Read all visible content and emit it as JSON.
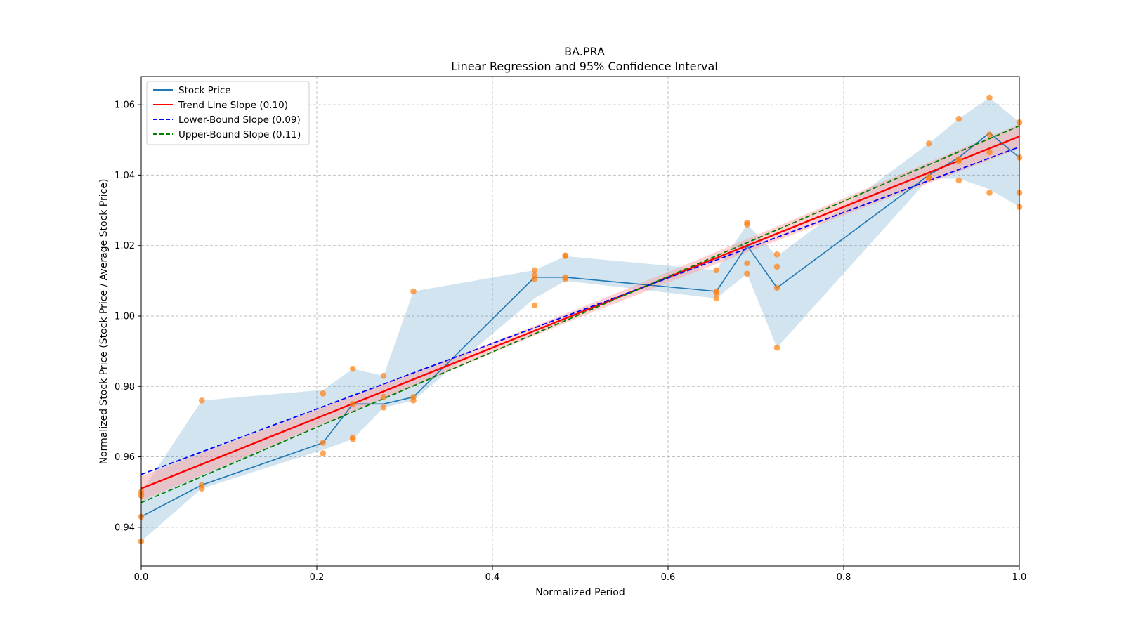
{
  "chart_data": {
    "type": "line",
    "title": "BA.PRA",
    "subtitle": "Linear Regression and 95% Confidence Interval",
    "xlabel": "Normalized Period",
    "ylabel": "Normalized Stock Price (Stock Price / Average Stock Price)",
    "xlim": [
      0.0,
      1.0
    ],
    "ylim": [
      0.929,
      1.068
    ],
    "xticks": [
      0.0,
      0.2,
      0.4,
      0.6,
      0.8,
      1.0
    ],
    "xtick_labels": [
      "0.0",
      "0.2",
      "0.4",
      "0.6",
      "0.8",
      "1.0"
    ],
    "yticks": [
      0.94,
      0.96,
      0.98,
      1.0,
      1.02,
      1.04,
      1.06
    ],
    "ytick_labels": [
      "0.94",
      "0.96",
      "0.98",
      "1.00",
      "1.02",
      "1.04",
      "1.06"
    ],
    "grid": true,
    "legend_position": "top-left",
    "colors": {
      "stock": "#1f77b4",
      "band": "#1f77b4",
      "points": "#ff7f0e",
      "trend": "#ff0000",
      "trend_ci": "#ff9999",
      "lower": "#0000ff",
      "upper": "#008000"
    },
    "series": [
      {
        "name": "Stock Price",
        "style": "solid",
        "x": [
          0.0,
          0.069,
          0.207,
          0.241,
          0.276,
          0.31,
          0.448,
          0.483,
          0.655,
          0.69,
          0.724,
          0.897,
          0.931,
          0.966,
          1.0
        ],
        "y": [
          0.943,
          0.952,
          0.964,
          0.975,
          0.975,
          0.977,
          1.011,
          1.011,
          1.007,
          1.02,
          1.008,
          1.04,
          1.045,
          1.052,
          1.045
        ]
      },
      {
        "name": "Trend Line Slope (0.10)",
        "style": "solid",
        "x": [
          0.0,
          1.0
        ],
        "y": [
          0.951,
          1.051
        ]
      },
      {
        "name": "Lower-Bound Slope (0.09)",
        "style": "dashed",
        "x": [
          0.0,
          1.0
        ],
        "y": [
          0.955,
          1.048
        ]
      },
      {
        "name": "Upper-Bound Slope (0.11)",
        "style": "dashed",
        "x": [
          0.0,
          1.0
        ],
        "y": [
          0.947,
          1.054
        ]
      }
    ],
    "stock_band": {
      "x": [
        0.0,
        0.069,
        0.207,
        0.241,
        0.276,
        0.31,
        0.448,
        0.483,
        0.655,
        0.69,
        0.724,
        0.897,
        0.931,
        0.966,
        1.0
      ],
      "lower": [
        0.936,
        0.951,
        0.962,
        0.965,
        0.974,
        0.976,
        1.005,
        1.01,
        1.005,
        1.012,
        0.991,
        1.039,
        1.039,
        1.036,
        1.031
      ],
      "upper": [
        0.95,
        0.976,
        0.979,
        0.985,
        0.983,
        1.007,
        1.013,
        1.017,
        1.013,
        1.026,
        1.017,
        1.049,
        1.056,
        1.062,
        1.055
      ]
    },
    "trend_band": {
      "x": [
        0.0,
        0.1,
        0.2,
        0.3,
        0.4,
        0.5,
        0.6,
        0.7,
        0.8,
        0.9,
        1.0
      ],
      "half_width": [
        0.0035,
        0.003,
        0.0024,
        0.0019,
        0.0015,
        0.0013,
        0.0015,
        0.0019,
        0.0024,
        0.003,
        0.0035
      ]
    },
    "scatter": {
      "x": [
        0.0,
        0.0,
        0.0,
        0.0,
        0.069,
        0.069,
        0.069,
        0.207,
        0.207,
        0.207,
        0.241,
        0.241,
        0.241,
        0.241,
        0.276,
        0.276,
        0.276,
        0.31,
        0.31,
        0.31,
        0.448,
        0.448,
        0.448,
        0.448,
        0.483,
        0.483,
        0.483,
        0.483,
        0.655,
        0.655,
        0.655,
        0.655,
        0.69,
        0.69,
        0.69,
        0.69,
        0.724,
        0.724,
        0.724,
        0.724,
        0.897,
        0.897,
        0.897,
        0.931,
        0.931,
        0.931,
        0.931,
        0.966,
        0.966,
        0.966,
        0.966,
        1.0,
        1.0,
        1.0,
        1.0
      ],
      "y": [
        0.936,
        0.943,
        0.949,
        0.95,
        0.951,
        0.952,
        0.976,
        0.961,
        0.964,
        0.978,
        0.965,
        0.9655,
        0.975,
        0.985,
        0.974,
        0.977,
        0.983,
        0.976,
        0.977,
        1.007,
        1.003,
        1.0105,
        1.0115,
        1.013,
        1.0105,
        1.011,
        1.017,
        1.0172,
        1.005,
        1.007,
        1.013,
        1.0065,
        1.012,
        1.015,
        1.026,
        1.0265,
        0.991,
        1.008,
        1.014,
        1.0175,
        1.039,
        1.0395,
        1.049,
        1.0385,
        1.044,
        1.0445,
        1.056,
        1.035,
        1.0465,
        1.0515,
        1.062,
        1.031,
        1.035,
        1.045,
        1.055
      ]
    }
  }
}
